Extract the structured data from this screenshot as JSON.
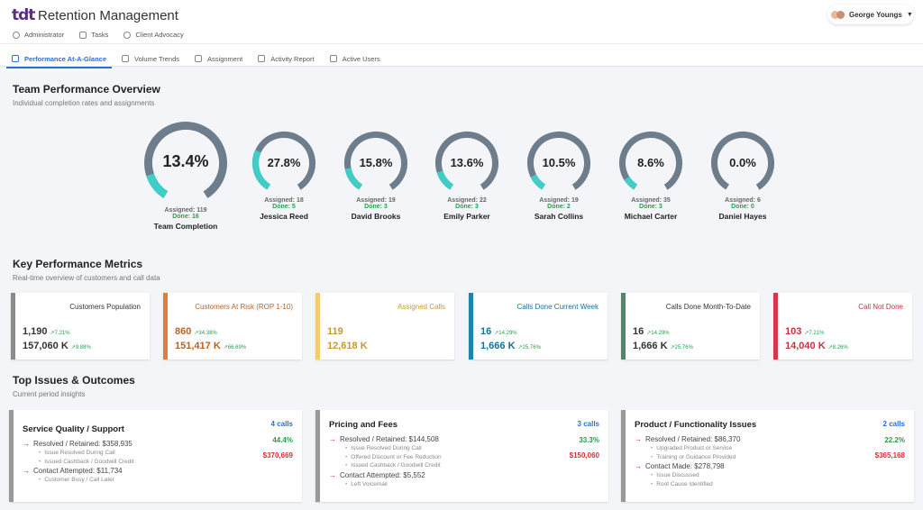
{
  "header": {
    "logo": "tdt",
    "title": "Retention Management",
    "user": "George Youngs"
  },
  "nav_primary": [
    {
      "label": "Administrator",
      "icon": "shield-icon"
    },
    {
      "label": "Tasks",
      "icon": "list-icon"
    },
    {
      "label": "Client Advocacy",
      "icon": "people-icon"
    }
  ],
  "nav_tabs": [
    {
      "label": "Performance At-A-Glance",
      "icon": "line-chart-icon",
      "active": true
    },
    {
      "label": "Volume Trends",
      "icon": "trend-icon",
      "active": false
    },
    {
      "label": "Assignment",
      "icon": "clipboard-icon",
      "active": false
    },
    {
      "label": "Activity Report",
      "icon": "report-icon",
      "active": false
    },
    {
      "label": "Active Users",
      "icon": "login-icon",
      "active": false
    }
  ],
  "team_overview": {
    "title": "Team Performance Overview",
    "subtitle": "Individual completion rates and assignments",
    "gauges": [
      {
        "pct_label": "13.4%",
        "pct": 13.4,
        "assigned": "Assigned: 119",
        "done": "Done: 16",
        "name": "Team Completion"
      },
      {
        "pct_label": "27.8%",
        "pct": 27.8,
        "assigned": "Assigned: 18",
        "done": "Done: 5",
        "name": "Jessica Reed"
      },
      {
        "pct_label": "15.8%",
        "pct": 15.8,
        "assigned": "Assigned: 19",
        "done": "Done: 3",
        "name": "David Brooks"
      },
      {
        "pct_label": "13.6%",
        "pct": 13.6,
        "assigned": "Assigned: 22",
        "done": "Done: 3",
        "name": "Emily Parker"
      },
      {
        "pct_label": "10.5%",
        "pct": 10.5,
        "assigned": "Assigned: 19",
        "done": "Done: 2",
        "name": "Sarah Collins"
      },
      {
        "pct_label": "8.6%",
        "pct": 8.6,
        "assigned": "Assigned: 35",
        "done": "Done: 3",
        "name": "Michael Carter"
      },
      {
        "pct_label": "0.0%",
        "pct": 0.0,
        "assigned": "Assigned: 6",
        "done": "Done: 0",
        "name": "Daniel Hayes"
      }
    ],
    "colors": {
      "track": "#6e7d8c",
      "fill": "#3fcdc6"
    }
  },
  "kpi": {
    "title": "Key Performance Metrics",
    "subtitle": "Real-time overview of customers and call data",
    "cards": [
      {
        "title": "Customers Population",
        "color": "#8c8c8c",
        "title_color": "#333333",
        "v1": "1,190",
        "d1": "↗7.21%",
        "v2": "157,060 K",
        "d2": "↗9.88%",
        "value_color": "#333333"
      },
      {
        "title": "Customers At Risk (ROP 1-10)",
        "color": "#e07f3c",
        "title_color": "#b8612a",
        "v1": "860",
        "d1": "↗34.38%",
        "v2": "151,417 K",
        "d2": "↗66.69%",
        "value_color": "#b8612a"
      },
      {
        "title": "Assigned Calls",
        "color": "#f2cd6e",
        "title_color": "#c79a2a",
        "v1": "119",
        "d1": "",
        "v2": "12,618 K",
        "d2": "",
        "value_color": "#c79a2a"
      },
      {
        "title": "Calls Done Current Week",
        "color": "#1a86a8",
        "title_color": "#1a6f95",
        "v1": "16",
        "d1": "↗14.29%",
        "v2": "1,666 K",
        "d2": "↗25.76%",
        "value_color": "#1a6f95"
      },
      {
        "title": "Calls Done Month-To-Date",
        "color": "#4a8a68",
        "title_color": "#333333",
        "v1": "16",
        "d1": "↗14.29%",
        "v2": "1,666 K",
        "d2": "↗25.76%",
        "value_color": "#333333"
      },
      {
        "title": "Call Not Done",
        "color": "#d6364a",
        "title_color": "#c9303f",
        "v1": "103",
        "d1": "↗7.21%",
        "v2": "14,040 K",
        "d2": "↗8.26%",
        "value_color": "#c9303f"
      }
    ],
    "delta_color": "#2b9c4a"
  },
  "issues": {
    "title": "Top Issues & Outcomes",
    "subtitle": "Current period insights",
    "cards": [
      {
        "title": "Service Quality / Support",
        "calls": "4 calls",
        "rate": "44.4%",
        "amount": "$370,669",
        "lines": [
          {
            "text": "Resolved / Retained: $358,935",
            "subs": [
              "Issue Resolved During Call",
              "Issued Cashback / Goodwill Credit"
            ]
          },
          {
            "text": "Contact Attempted: $11,734",
            "subs": [
              "Customer Busy / Call Later"
            ]
          }
        ]
      },
      {
        "title": "Pricing and Fees",
        "calls": "3 calls",
        "rate": "33.3%",
        "amount": "$150,060",
        "lines": [
          {
            "text": "Resolved / Retained: $144,508",
            "subs": [
              "Issue Resolved During Call",
              "Offered Discount or Fee Reduction",
              "Issued Cashback / Goodwill Credit"
            ]
          },
          {
            "text": "Contact Attempted: $5,552",
            "subs": [
              "Left Voicemail"
            ]
          }
        ]
      },
      {
        "title": "Product / Functionality Issues",
        "calls": "2 calls",
        "rate": "22.2%",
        "amount": "$365,168",
        "lines": [
          {
            "text": "Resolved / Retained: $86,370",
            "subs": [
              "Upgraded Product or Service",
              "Training or Guidance Provided"
            ]
          },
          {
            "text": "Contact Made: $278,798",
            "subs": [
              "Issue Discussed",
              "Root Cause Identified"
            ]
          }
        ]
      }
    ]
  }
}
